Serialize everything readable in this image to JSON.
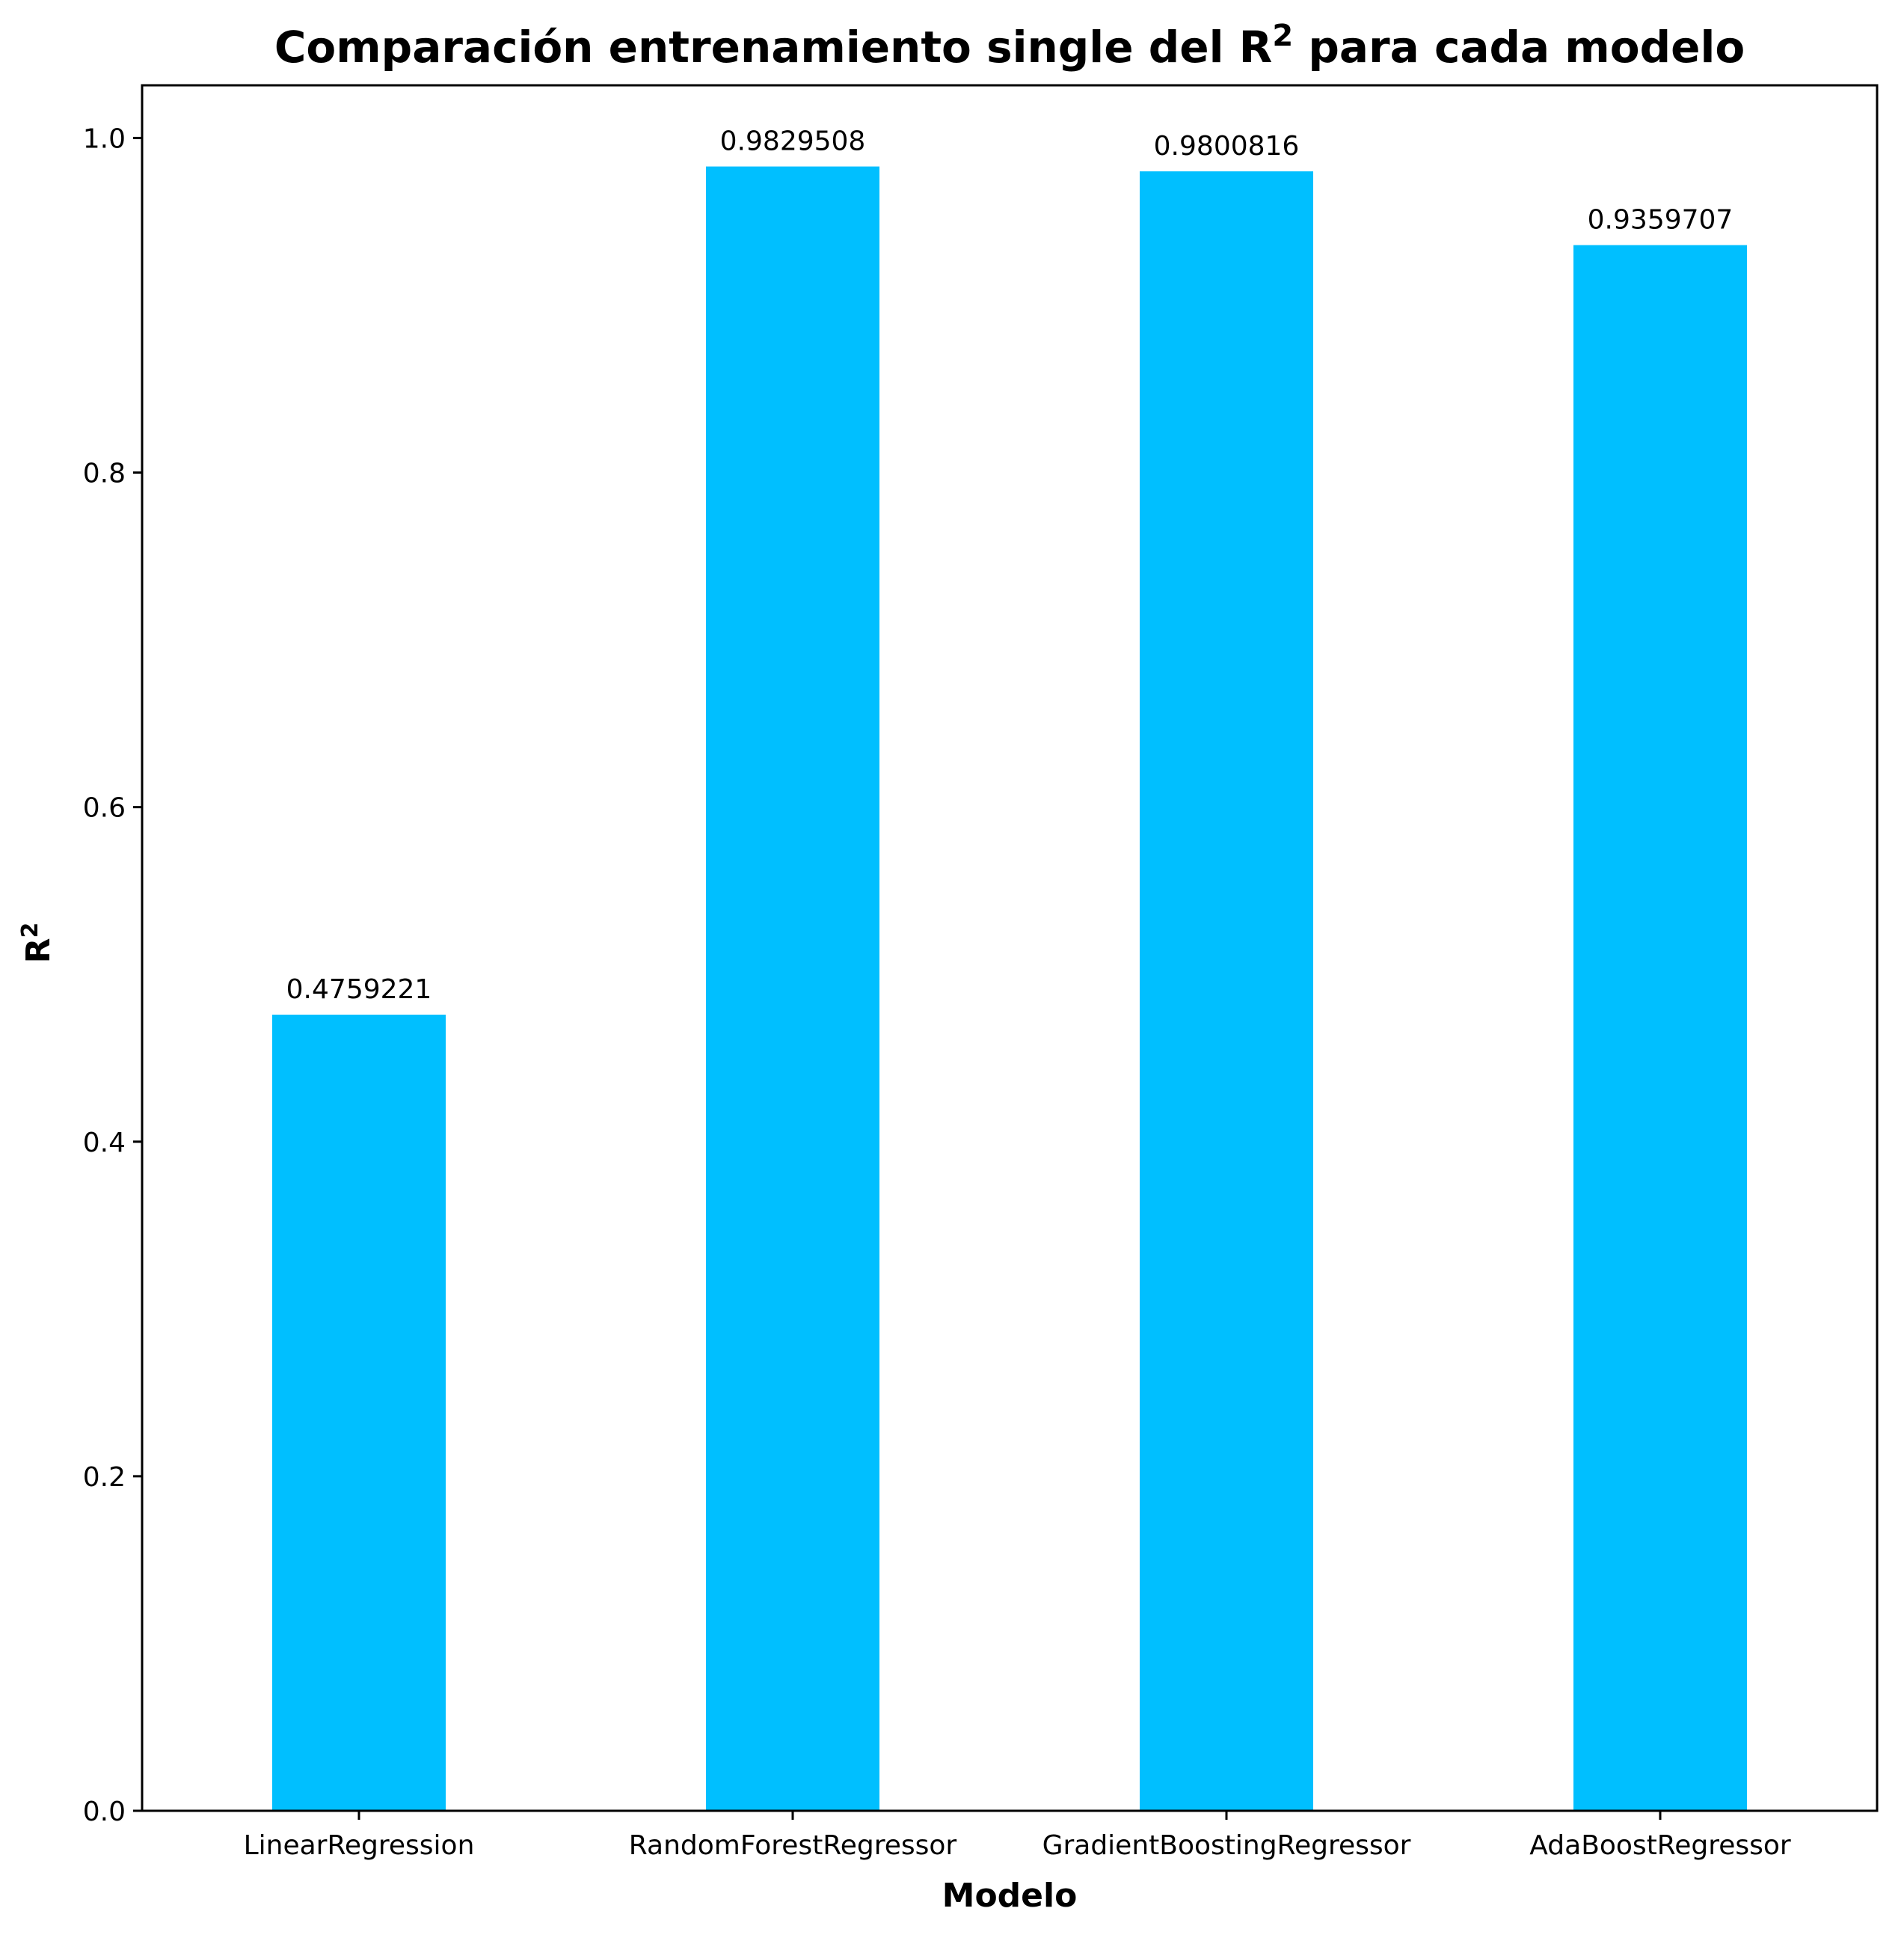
{
  "chart_data": {
    "type": "bar",
    "title": {
      "main": "Comparación entrenamiento single del R",
      "superscript": "2",
      "suffix": " para cada modelo"
    },
    "xlabel": "Modelo",
    "ylabel": {
      "main": "R",
      "superscript": "2"
    },
    "categories": [
      "LinearRegression",
      "RandomForestRegressor",
      "GradientBoostingRegressor",
      "AdaBoostRegressor"
    ],
    "values": [
      0.4759221,
      0.9829508,
      0.9800816,
      0.9359707
    ],
    "value_labels": [
      "0.4759221",
      "0.9829508",
      "0.9800816",
      "0.9359707"
    ],
    "ylim": [
      0,
      1.0315
    ],
    "yticks": [
      0.0,
      0.2,
      0.4,
      0.6,
      0.8,
      1.0
    ],
    "ytick_labels": [
      "0.0",
      "0.2",
      "0.4",
      "0.6",
      "0.8",
      "1.0"
    ],
    "bar_color": "#00bfff",
    "grid": false,
    "legend": "none"
  }
}
